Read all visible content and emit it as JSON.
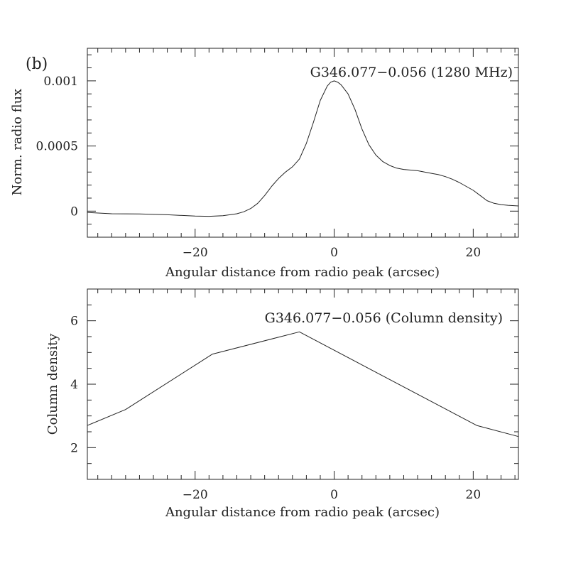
{
  "panel_label": "(b)",
  "chart_data": [
    {
      "type": "line",
      "title": "G346.077−0.056 (1280 MHz)",
      "xlabel": "Angular distance from radio peak (arcsec)",
      "ylabel": "Norm. radio flux",
      "xlim": [
        -35.5,
        26.5
      ],
      "ylim": [
        -0.0002,
        0.00125
      ],
      "xticks": [
        -20,
        0,
        20
      ],
      "xtick_labels": [
        "−20",
        "0",
        "20"
      ],
      "yticks": [
        0,
        0.0005,
        0.001
      ],
      "ytick_labels": [
        "0",
        "0.0005",
        "0.001"
      ],
      "series": [
        {
          "name": "1280 MHz",
          "x": [
            -35.5,
            -32,
            -28,
            -24,
            -20,
            -18,
            -16,
            -14,
            -13,
            -12,
            -11,
            -10,
            -9,
            -8,
            -7,
            -6,
            -5,
            -4,
            -3,
            -2,
            -1,
            -0.5,
            0,
            0.5,
            1,
            2,
            3,
            4,
            5,
            6,
            7,
            8,
            9,
            10,
            11,
            12,
            13,
            14,
            15,
            16,
            17,
            18,
            19,
            20,
            21,
            22,
            23,
            24,
            25,
            26.5
          ],
          "y": [
            -1e-05,
            -2e-05,
            -2.2e-05,
            -2.8e-05,
            -3.8e-05,
            -4e-05,
            -3.5e-05,
            -2e-05,
            -5e-06,
            2e-05,
            6e-05,
            0.00012,
            0.00019,
            0.00025,
            0.0003,
            0.00034,
            0.0004,
            0.00052,
            0.00068,
            0.00085,
            0.00096,
            0.00099,
            0.001,
            0.00099,
            0.00097,
            0.0009,
            0.00078,
            0.00063,
            0.00051,
            0.00043,
            0.00038,
            0.00035,
            0.00033,
            0.00032,
            0.000315,
            0.00031,
            0.0003,
            0.00029,
            0.00028,
            0.000265,
            0.000245,
            0.00022,
            0.00019,
            0.00016,
            0.00012,
            8e-05,
            6e-05,
            5e-05,
            4.5e-05,
            4e-05
          ]
        }
      ]
    },
    {
      "type": "line",
      "title": "G346.077−0.056 (Column density)",
      "xlabel": "Angular distance from radio peak (arcsec)",
      "ylabel": "Column density",
      "xlim": [
        -35.5,
        26.5
      ],
      "ylim": [
        1,
        7
      ],
      "xticks": [
        -20,
        0,
        20
      ],
      "xtick_labels": [
        "−20",
        "0",
        "20"
      ],
      "yticks": [
        2,
        4,
        6
      ],
      "ytick_labels": [
        "2",
        "4",
        "6"
      ],
      "series": [
        {
          "name": "Column density",
          "x": [
            -35.5,
            -30,
            -17.5,
            -5,
            20.5,
            26.5
          ],
          "y": [
            2.7,
            3.2,
            4.95,
            5.65,
            2.7,
            2.35
          ]
        }
      ]
    }
  ]
}
